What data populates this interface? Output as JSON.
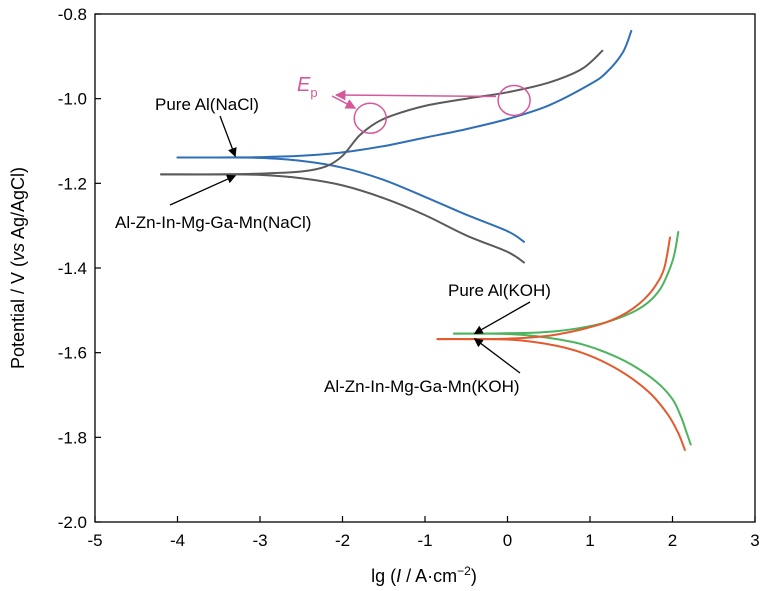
{
  "chart_data": {
    "type": "line",
    "title": "",
    "xlabel": {
      "pre": "lg (",
      "var": "I",
      "mid": " / A·cm",
      "sup": "−2",
      "post": ")"
    },
    "ylabel": {
      "pre": "Potential / V (",
      "var": "vs",
      "post": " Ag/AgCl)"
    },
    "xlim": [
      -5,
      3
    ],
    "ylim": [
      -2.0,
      -0.8
    ],
    "xticks": [
      -5,
      -4,
      -3,
      -2,
      -1,
      0,
      1,
      2,
      3
    ],
    "yticks": [
      -2.0,
      -1.8,
      -1.6,
      -1.4,
      -1.2,
      -1.0,
      -0.8
    ],
    "xtick_labels": [
      "-5",
      "-4",
      "-3",
      "-2",
      "-1",
      "0",
      "1",
      "2",
      "3"
    ],
    "ytick_labels": [
      "-2.0",
      "-1.8",
      "-1.6",
      "-1.4",
      "-1.2",
      "-1.0",
      "-0.8"
    ],
    "grid": false,
    "series": [
      {
        "name": "Pure Al(NaCl)",
        "color": "#2f6fb8",
        "anodic": [
          [
            -4.0,
            -1.139
          ],
          [
            -3.5,
            -1.139
          ],
          [
            -3.0,
            -1.138
          ],
          [
            -2.5,
            -1.135
          ],
          [
            -2.0,
            -1.127
          ],
          [
            -1.5,
            -1.112
          ],
          [
            -1.0,
            -1.092
          ],
          [
            -0.5,
            -1.072
          ],
          [
            0.0,
            -1.048
          ],
          [
            0.5,
            -1.016
          ],
          [
            1.0,
            -0.966
          ],
          [
            1.2,
            -0.938
          ],
          [
            1.4,
            -0.89
          ],
          [
            1.5,
            -0.84
          ]
        ],
        "cathodic": [
          [
            -4.0,
            -1.139
          ],
          [
            -3.5,
            -1.139
          ],
          [
            -3.0,
            -1.14
          ],
          [
            -2.5,
            -1.147
          ],
          [
            -2.0,
            -1.163
          ],
          [
            -1.5,
            -1.192
          ],
          [
            -1.0,
            -1.232
          ],
          [
            -0.5,
            -1.274
          ],
          [
            0.0,
            -1.313
          ],
          [
            0.2,
            -1.338
          ]
        ]
      },
      {
        "name": "Al-Zn-In-Mg-Ga-Mn(NaCl)",
        "color": "#5a5a5a",
        "anodic": [
          [
            -4.2,
            -1.179
          ],
          [
            -3.5,
            -1.179
          ],
          [
            -3.0,
            -1.177
          ],
          [
            -2.5,
            -1.172
          ],
          [
            -2.2,
            -1.16
          ],
          [
            -2.0,
            -1.135
          ],
          [
            -1.8,
            -1.088
          ],
          [
            -1.6,
            -1.058
          ],
          [
            -1.4,
            -1.04
          ],
          [
            -1.0,
            -1.017
          ],
          [
            -0.5,
            -1.0
          ],
          [
            0.0,
            -0.985
          ],
          [
            0.5,
            -0.962
          ],
          [
            0.9,
            -0.93
          ],
          [
            1.15,
            -0.887
          ]
        ],
        "cathodic": [
          [
            -4.2,
            -1.179
          ],
          [
            -3.5,
            -1.179
          ],
          [
            -3.0,
            -1.18
          ],
          [
            -2.5,
            -1.188
          ],
          [
            -2.0,
            -1.205
          ],
          [
            -1.5,
            -1.235
          ],
          [
            -1.0,
            -1.275
          ],
          [
            -0.5,
            -1.323
          ],
          [
            0.0,
            -1.362
          ],
          [
            0.2,
            -1.387
          ]
        ]
      },
      {
        "name": "Pure Al(KOH)",
        "color": "#4cb35e",
        "anodic": [
          [
            -0.65,
            -1.555
          ],
          [
            -0.3,
            -1.555
          ],
          [
            0.0,
            -1.554
          ],
          [
            0.3,
            -1.553
          ],
          [
            0.6,
            -1.549
          ],
          [
            0.9,
            -1.541
          ],
          [
            1.2,
            -1.528
          ],
          [
            1.5,
            -1.506
          ],
          [
            1.7,
            -1.482
          ],
          [
            1.85,
            -1.45
          ],
          [
            1.95,
            -1.41
          ],
          [
            2.02,
            -1.37
          ],
          [
            2.07,
            -1.315
          ]
        ],
        "cathodic": [
          [
            -0.65,
            -1.555
          ],
          [
            -0.3,
            -1.555
          ],
          [
            0.0,
            -1.556
          ],
          [
            0.3,
            -1.56
          ],
          [
            0.6,
            -1.568
          ],
          [
            0.9,
            -1.58
          ],
          [
            1.2,
            -1.6
          ],
          [
            1.5,
            -1.628
          ],
          [
            1.8,
            -1.668
          ],
          [
            2.0,
            -1.71
          ],
          [
            2.1,
            -1.75
          ],
          [
            2.17,
            -1.788
          ],
          [
            2.22,
            -1.817
          ]
        ]
      },
      {
        "name": "Al-Zn-In-Mg-Ga-Mn(KOH)",
        "color": "#e35a2e",
        "anodic": [
          [
            -0.85,
            -1.568
          ],
          [
            -0.5,
            -1.568
          ],
          [
            0.0,
            -1.567
          ],
          [
            0.3,
            -1.564
          ],
          [
            0.6,
            -1.557
          ],
          [
            0.9,
            -1.545
          ],
          [
            1.2,
            -1.528
          ],
          [
            1.45,
            -1.505
          ],
          [
            1.65,
            -1.475
          ],
          [
            1.8,
            -1.44
          ],
          [
            1.9,
            -1.4
          ],
          [
            1.97,
            -1.328
          ]
        ],
        "cathodic": [
          [
            -0.85,
            -1.568
          ],
          [
            -0.5,
            -1.568
          ],
          [
            0.0,
            -1.569
          ],
          [
            0.3,
            -1.574
          ],
          [
            0.6,
            -1.584
          ],
          [
            0.9,
            -1.6
          ],
          [
            1.2,
            -1.625
          ],
          [
            1.5,
            -1.66
          ],
          [
            1.75,
            -1.7
          ],
          [
            1.95,
            -1.748
          ],
          [
            2.07,
            -1.79
          ],
          [
            2.15,
            -1.83
          ]
        ]
      }
    ],
    "annotations": [
      {
        "text": "Pure Al(NaCl)",
        "series": 0,
        "arrow_to": [
          -3.3,
          -1.136
        ]
      },
      {
        "text": "Al-Zn-In-Mg-Ga-Mn(NaCl)",
        "series": 1,
        "arrow_to": [
          -3.3,
          -1.182
        ]
      },
      {
        "text": "Pure Al(KOH)",
        "series": 2,
        "arrow_to": [
          -0.4,
          -1.555
        ]
      },
      {
        "text": "Al-Zn-In-Mg-Ga-Mn(KOH)",
        "series": 3,
        "arrow_to": [
          -0.4,
          -1.567
        ]
      }
    ],
    "ep_annotation": {
      "symbol": "E",
      "subscript": "p",
      "color": "#d6589a",
      "markers": [
        [
          -1.7,
          -1.058
        ],
        [
          0.08,
          -1.016
        ]
      ]
    }
  }
}
